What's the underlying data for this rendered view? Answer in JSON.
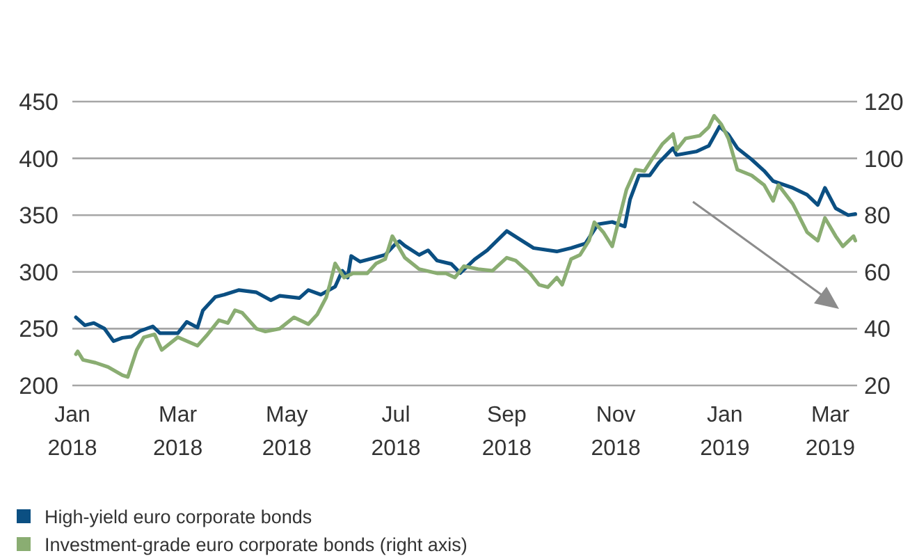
{
  "chart_data": {
    "type": "line",
    "xlim": [
      "2018-01-01",
      "2019-03-16"
    ],
    "xticks": [
      {
        "value": "2018-01-01",
        "label": "Jan\n2018"
      },
      {
        "value": "2018-03-01",
        "label": "Mar\n2018"
      },
      {
        "value": "2018-05-01",
        "label": "May\n2018"
      },
      {
        "value": "2018-07-01",
        "label": "Jul\n2018"
      },
      {
        "value": "2018-09-01",
        "label": "Sep\n2018"
      },
      {
        "value": "2018-11-01",
        "label": "Nov\n2018"
      },
      {
        "value": "2019-01-01",
        "label": "Jan\n2019"
      },
      {
        "value": "2019-03-01",
        "label": "Mar\n2019"
      }
    ],
    "ylim": [
      200,
      450
    ],
    "yticks": [
      200,
      250,
      300,
      350,
      400,
      450
    ],
    "y2lim": [
      20,
      120
    ],
    "y2ticks": [
      20,
      40,
      60,
      80,
      100,
      120
    ],
    "grid": "y",
    "legend": "bottom left",
    "line_style": "solid",
    "marker": "none",
    "series": [
      {
        "name": "High-yield euro corporate bonds",
        "color": "#0b4f82",
        "x": [
          "2018-01-03",
          "2018-01-08",
          "2018-01-13",
          "2018-01-19",
          "2018-01-24",
          "2018-01-29",
          "2018-02-03",
          "2018-02-08",
          "2018-02-15",
          "2018-02-19",
          "2018-03-01",
          "2018-03-06",
          "2018-03-12",
          "2018-03-15",
          "2018-03-22",
          "2018-03-27",
          "2018-04-04",
          "2018-04-14",
          "2018-04-22",
          "2018-04-27",
          "2018-05-08",
          "2018-05-13",
          "2018-05-20",
          "2018-05-28",
          "2018-06-01",
          "2018-06-04",
          "2018-06-06",
          "2018-06-11",
          "2018-06-18",
          "2018-06-25",
          "2018-07-01",
          "2018-07-03",
          "2018-07-06",
          "2018-07-14",
          "2018-07-19",
          "2018-07-24",
          "2018-08-01",
          "2018-08-06",
          "2018-08-14",
          "2018-08-21",
          "2018-09-01",
          "2018-09-08",
          "2018-09-16",
          "2018-09-29",
          "2018-10-07",
          "2018-10-15",
          "2018-10-22",
          "2018-10-30",
          "2018-11-06",
          "2018-11-09",
          "2018-11-14",
          "2018-11-20",
          "2018-11-25",
          "2018-12-03",
          "2018-12-05",
          "2018-12-16",
          "2018-12-23",
          "2018-12-29",
          "2019-01-03",
          "2019-01-08",
          "2019-01-16",
          "2019-01-23",
          "2019-01-28",
          "2019-02-08",
          "2019-02-16",
          "2019-02-22",
          "2019-02-26",
          "2019-03-04",
          "2019-03-11",
          "2019-03-15"
        ],
        "values": [
          260,
          253,
          255,
          250,
          239,
          242,
          243,
          248,
          252,
          246,
          246,
          256,
          251,
          266,
          278,
          280,
          284,
          282,
          275,
          279,
          277,
          284,
          280,
          287,
          301,
          295,
          314,
          309,
          312,
          315,
          325,
          327,
          323,
          315,
          319,
          310,
          307,
          299,
          311,
          319,
          336,
          329,
          321,
          318,
          321,
          325,
          342,
          344,
          340,
          364,
          385,
          385,
          396,
          409,
          403,
          406,
          411,
          428,
          421,
          409,
          399,
          389,
          380,
          374,
          368,
          359,
          374,
          356,
          350,
          351
        ]
      },
      {
        "name": "Investment-grade euro corporate bonds (right axis)",
        "color": "#8aad72",
        "axis": "y2",
        "x": [
          "2018-01-03",
          "2018-01-04",
          "2018-01-07",
          "2018-01-14",
          "2018-01-21",
          "2018-01-29",
          "2018-02-01",
          "2018-02-06",
          "2018-02-10",
          "2018-02-16",
          "2018-02-20",
          "2018-03-01",
          "2018-03-12",
          "2018-03-17",
          "2018-03-24",
          "2018-03-29",
          "2018-04-02",
          "2018-04-06",
          "2018-04-14",
          "2018-04-19",
          "2018-04-27",
          "2018-05-05",
          "2018-05-13",
          "2018-05-18",
          "2018-05-23",
          "2018-05-25",
          "2018-05-28",
          "2018-06-02",
          "2018-06-07",
          "2018-06-15",
          "2018-06-20",
          "2018-06-25",
          "2018-06-29",
          "2018-07-06",
          "2018-07-14",
          "2018-07-24",
          "2018-07-29",
          "2018-08-03",
          "2018-08-08",
          "2018-08-16",
          "2018-08-24",
          "2018-09-01",
          "2018-09-06",
          "2018-09-14",
          "2018-09-19",
          "2018-09-24",
          "2018-09-29",
          "2018-10-02",
          "2018-10-07",
          "2018-10-12",
          "2018-10-17",
          "2018-10-20",
          "2018-10-25",
          "2018-10-30",
          "2018-11-07",
          "2018-11-12",
          "2018-11-17",
          "2018-11-22",
          "2018-11-27",
          "2018-12-03",
          "2018-12-05",
          "2018-12-10",
          "2018-12-18",
          "2018-12-23",
          "2018-12-26",
          "2018-12-30",
          "2019-01-03",
          "2019-01-08",
          "2019-01-16",
          "2019-01-23",
          "2019-01-28",
          "2019-01-31",
          "2019-02-08",
          "2019-02-16",
          "2019-02-22",
          "2019-02-26",
          "2019-03-04",
          "2019-03-08",
          "2019-03-14",
          "2019-03-15"
        ],
        "values": [
          31,
          32,
          29,
          28,
          26.5,
          23.6,
          23,
          32.5,
          37,
          38,
          32.5,
          37,
          34,
          37.5,
          43,
          42,
          46.5,
          45.6,
          40,
          39,
          40,
          44,
          41.6,
          45,
          51,
          55.5,
          63,
          58,
          59.5,
          59.5,
          63,
          64.5,
          72.6,
          65,
          61,
          59.5,
          59.5,
          58,
          62,
          61,
          60.4,
          65,
          64,
          59.5,
          55.5,
          54.6,
          58,
          55.5,
          64.5,
          66,
          71,
          77.5,
          74,
          69,
          89,
          96,
          95.5,
          100.4,
          105,
          108.6,
          103,
          107,
          108,
          111,
          115,
          112,
          107,
          96,
          94,
          90.6,
          85,
          90.6,
          84,
          74,
          71,
          79,
          72.6,
          69,
          72.6,
          71
        ]
      }
    ]
  }
}
